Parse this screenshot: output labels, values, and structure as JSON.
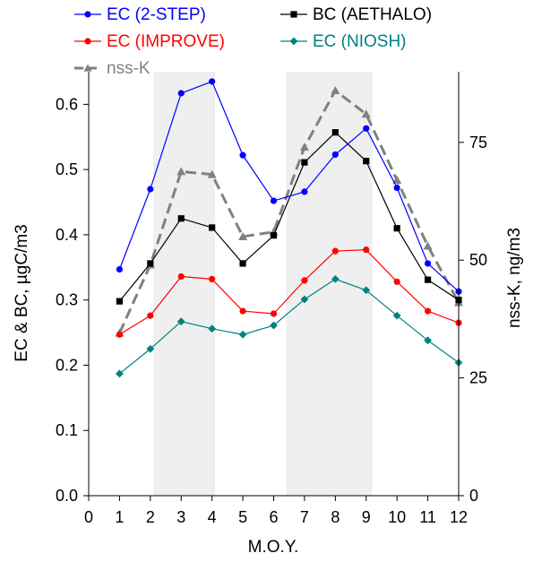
{
  "chart_data": {
    "type": "line",
    "title": "",
    "xlabel": "M.O.Y.",
    "ylabel": "EC & BC, µgC/m3",
    "ylabel_right": "nss-K, ng/m3",
    "xlim": [
      0,
      12
    ],
    "ylim": [
      0,
      0.65
    ],
    "ylim_right": [
      0,
      90
    ],
    "x_ticks": [
      0,
      1,
      2,
      3,
      4,
      5,
      6,
      7,
      8,
      9,
      10,
      11,
      12
    ],
    "y_ticks": [
      0.0,
      0.1,
      0.2,
      0.3,
      0.4,
      0.5,
      0.6
    ],
    "y_tick_labels": [
      "0.0",
      "0.1",
      "0.2",
      "0.3",
      "0.4",
      "0.5",
      "0.6"
    ],
    "y_right_ticks": [
      0,
      25,
      50,
      75
    ],
    "shaded_regions": [
      [
        2.1,
        4.1
      ],
      [
        6.4,
        9.2
      ]
    ],
    "shade_color": "#efefef",
    "grid": false,
    "legend_position": "top",
    "x": [
      1,
      2,
      3,
      4,
      5,
      6,
      7,
      8,
      9,
      10,
      11,
      12
    ],
    "series": [
      {
        "name": "EC (2-STEP)",
        "axis": "left",
        "color": "#0000ff",
        "marker": "circle",
        "dashed": false,
        "values": [
          0.347,
          0.47,
          0.617,
          0.635,
          0.522,
          0.452,
          0.466,
          0.523,
          0.563,
          0.472,
          0.356,
          0.313
        ]
      },
      {
        "name": "BC (AETHALO)",
        "axis": "left",
        "color": "#000000",
        "marker": "square",
        "dashed": false,
        "values": [
          0.298,
          0.356,
          0.425,
          0.411,
          0.356,
          0.399,
          0.511,
          0.557,
          0.513,
          0.41,
          0.331,
          0.3
        ]
      },
      {
        "name": "EC (IMPROVE)",
        "axis": "left",
        "color": "#ff0000",
        "marker": "circle",
        "dashed": false,
        "values": [
          0.247,
          0.276,
          0.336,
          0.332,
          0.283,
          0.279,
          0.33,
          0.375,
          0.377,
          0.328,
          0.283,
          0.265
        ]
      },
      {
        "name": "EC (NIOSH)",
        "axis": "left",
        "color": "#008080",
        "marker": "diamond",
        "dashed": false,
        "values": [
          0.187,
          0.225,
          0.267,
          0.256,
          0.247,
          0.261,
          0.301,
          0.332,
          0.315,
          0.276,
          0.238,
          0.204
        ]
      },
      {
        "name": "nss-K",
        "axis": "right",
        "color": "#808080",
        "marker": "triangle",
        "dashed": true,
        "values": [
          34.5,
          49.0,
          68.8,
          68.2,
          55.0,
          56.0,
          74.0,
          86.0,
          81.0,
          67.0,
          53.0,
          41.0
        ]
      }
    ]
  }
}
